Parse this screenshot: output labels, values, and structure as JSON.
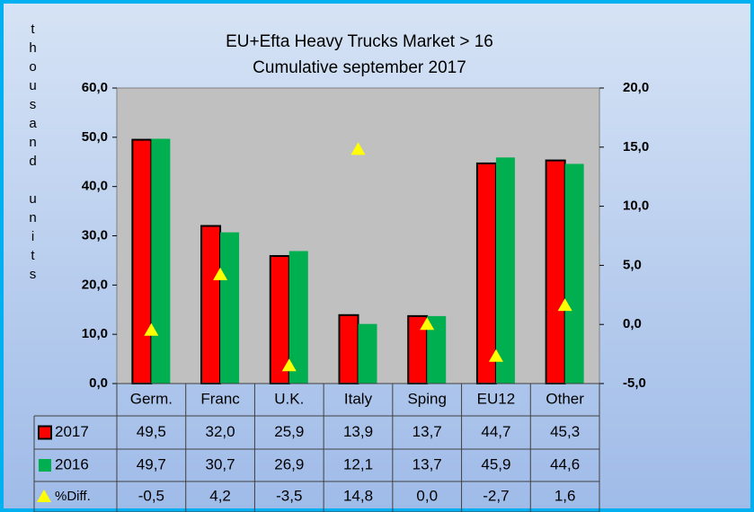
{
  "chart_data": {
    "type": "bar",
    "title": "EU+Efta Heavy Trucks Market > 16",
    "subtitle": "Cumulative september 2017",
    "y_axis_label": "thousand units",
    "categories": [
      "Germ.",
      "Franc",
      "U.K.",
      "Italy",
      "Sping",
      "EU12",
      "Other"
    ],
    "series": [
      {
        "name": "2017",
        "color": "#ff0000",
        "values": [
          49.5,
          32.0,
          25.9,
          13.9,
          13.7,
          44.7,
          45.3
        ],
        "value_labels": [
          "49,5",
          "32,0",
          "25,9",
          "13,9",
          "13,7",
          "44,7",
          "45,3"
        ]
      },
      {
        "name": "2016",
        "color": "#00b050",
        "values": [
          49.7,
          30.7,
          26.9,
          12.1,
          13.7,
          45.9,
          44.6
        ],
        "value_labels": [
          "49,7",
          "30,7",
          "26,9",
          "12,1",
          "13,7",
          "45,9",
          "44,6"
        ]
      },
      {
        "name": "%Diff.",
        "color": "#ffff00",
        "axis": "y2",
        "marker": "triangle",
        "values": [
          -0.5,
          4.2,
          -3.5,
          14.8,
          0.0,
          -2.7,
          1.6
        ],
        "value_labels": [
          "-0,5",
          "4,2",
          "-3,5",
          "14,8",
          "0,0",
          "-2,7",
          "1,6"
        ]
      }
    ],
    "ylim": [
      0,
      60
    ],
    "yticks": [
      {
        "value": 0,
        "label": "0,0"
      },
      {
        "value": 10,
        "label": "10,0"
      },
      {
        "value": 20,
        "label": "20,0"
      },
      {
        "value": 30,
        "label": "30,0"
      },
      {
        "value": 40,
        "label": "40,0"
      },
      {
        "value": 50,
        "label": "50,0"
      },
      {
        "value": 60,
        "label": "60,0"
      }
    ],
    "y2lim": [
      -5,
      20
    ],
    "y2ticks": [
      {
        "value": -5,
        "label": "-5,0"
      },
      {
        "value": 0,
        "label": "0,0"
      },
      {
        "value": 5,
        "label": "5,0"
      },
      {
        "value": 10,
        "label": "10,0"
      },
      {
        "value": 15,
        "label": "15,0"
      },
      {
        "value": 20,
        "label": "20,0"
      }
    ]
  }
}
